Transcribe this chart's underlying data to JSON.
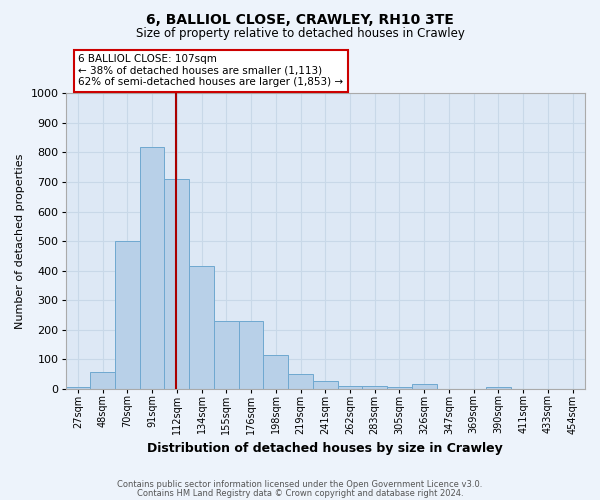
{
  "title": "6, BALLIOL CLOSE, CRAWLEY, RH10 3TE",
  "subtitle": "Size of property relative to detached houses in Crawley",
  "xlabel": "Distribution of detached houses by size in Crawley",
  "ylabel": "Number of detached properties",
  "bin_labels": [
    "27sqm",
    "48sqm",
    "70sqm",
    "91sqm",
    "112sqm",
    "134sqm",
    "155sqm",
    "176sqm",
    "198sqm",
    "219sqm",
    "241sqm",
    "262sqm",
    "283sqm",
    "305sqm",
    "326sqm",
    "347sqm",
    "369sqm",
    "390sqm",
    "411sqm",
    "433sqm",
    "454sqm"
  ],
  "bar_values": [
    5,
    55,
    500,
    820,
    710,
    415,
    228,
    228,
    115,
    50,
    25,
    10,
    10,
    5,
    15,
    0,
    0,
    5,
    0,
    0,
    0
  ],
  "bar_color": "#b8d0e8",
  "bar_edge_color": "#6fa8d0",
  "grid_color": "#c8d8e8",
  "bg_color": "#dde8f5",
  "property_line_color": "#aa0000",
  "annotation_text": "6 BALLIOL CLOSE: 107sqm\n← 38% of detached houses are smaller (1,113)\n62% of semi-detached houses are larger (1,853) →",
  "ylim": [
    0,
    1000
  ],
  "yticks": [
    0,
    100,
    200,
    300,
    400,
    500,
    600,
    700,
    800,
    900,
    1000
  ],
  "property_bin_index": 4,
  "fig_bg_color": "#edf3fb",
  "footer_line1": "Contains HM Land Registry data © Crown copyright and database right 2024.",
  "footer_line2": "Contains public sector information licensed under the Open Government Licence v3.0."
}
